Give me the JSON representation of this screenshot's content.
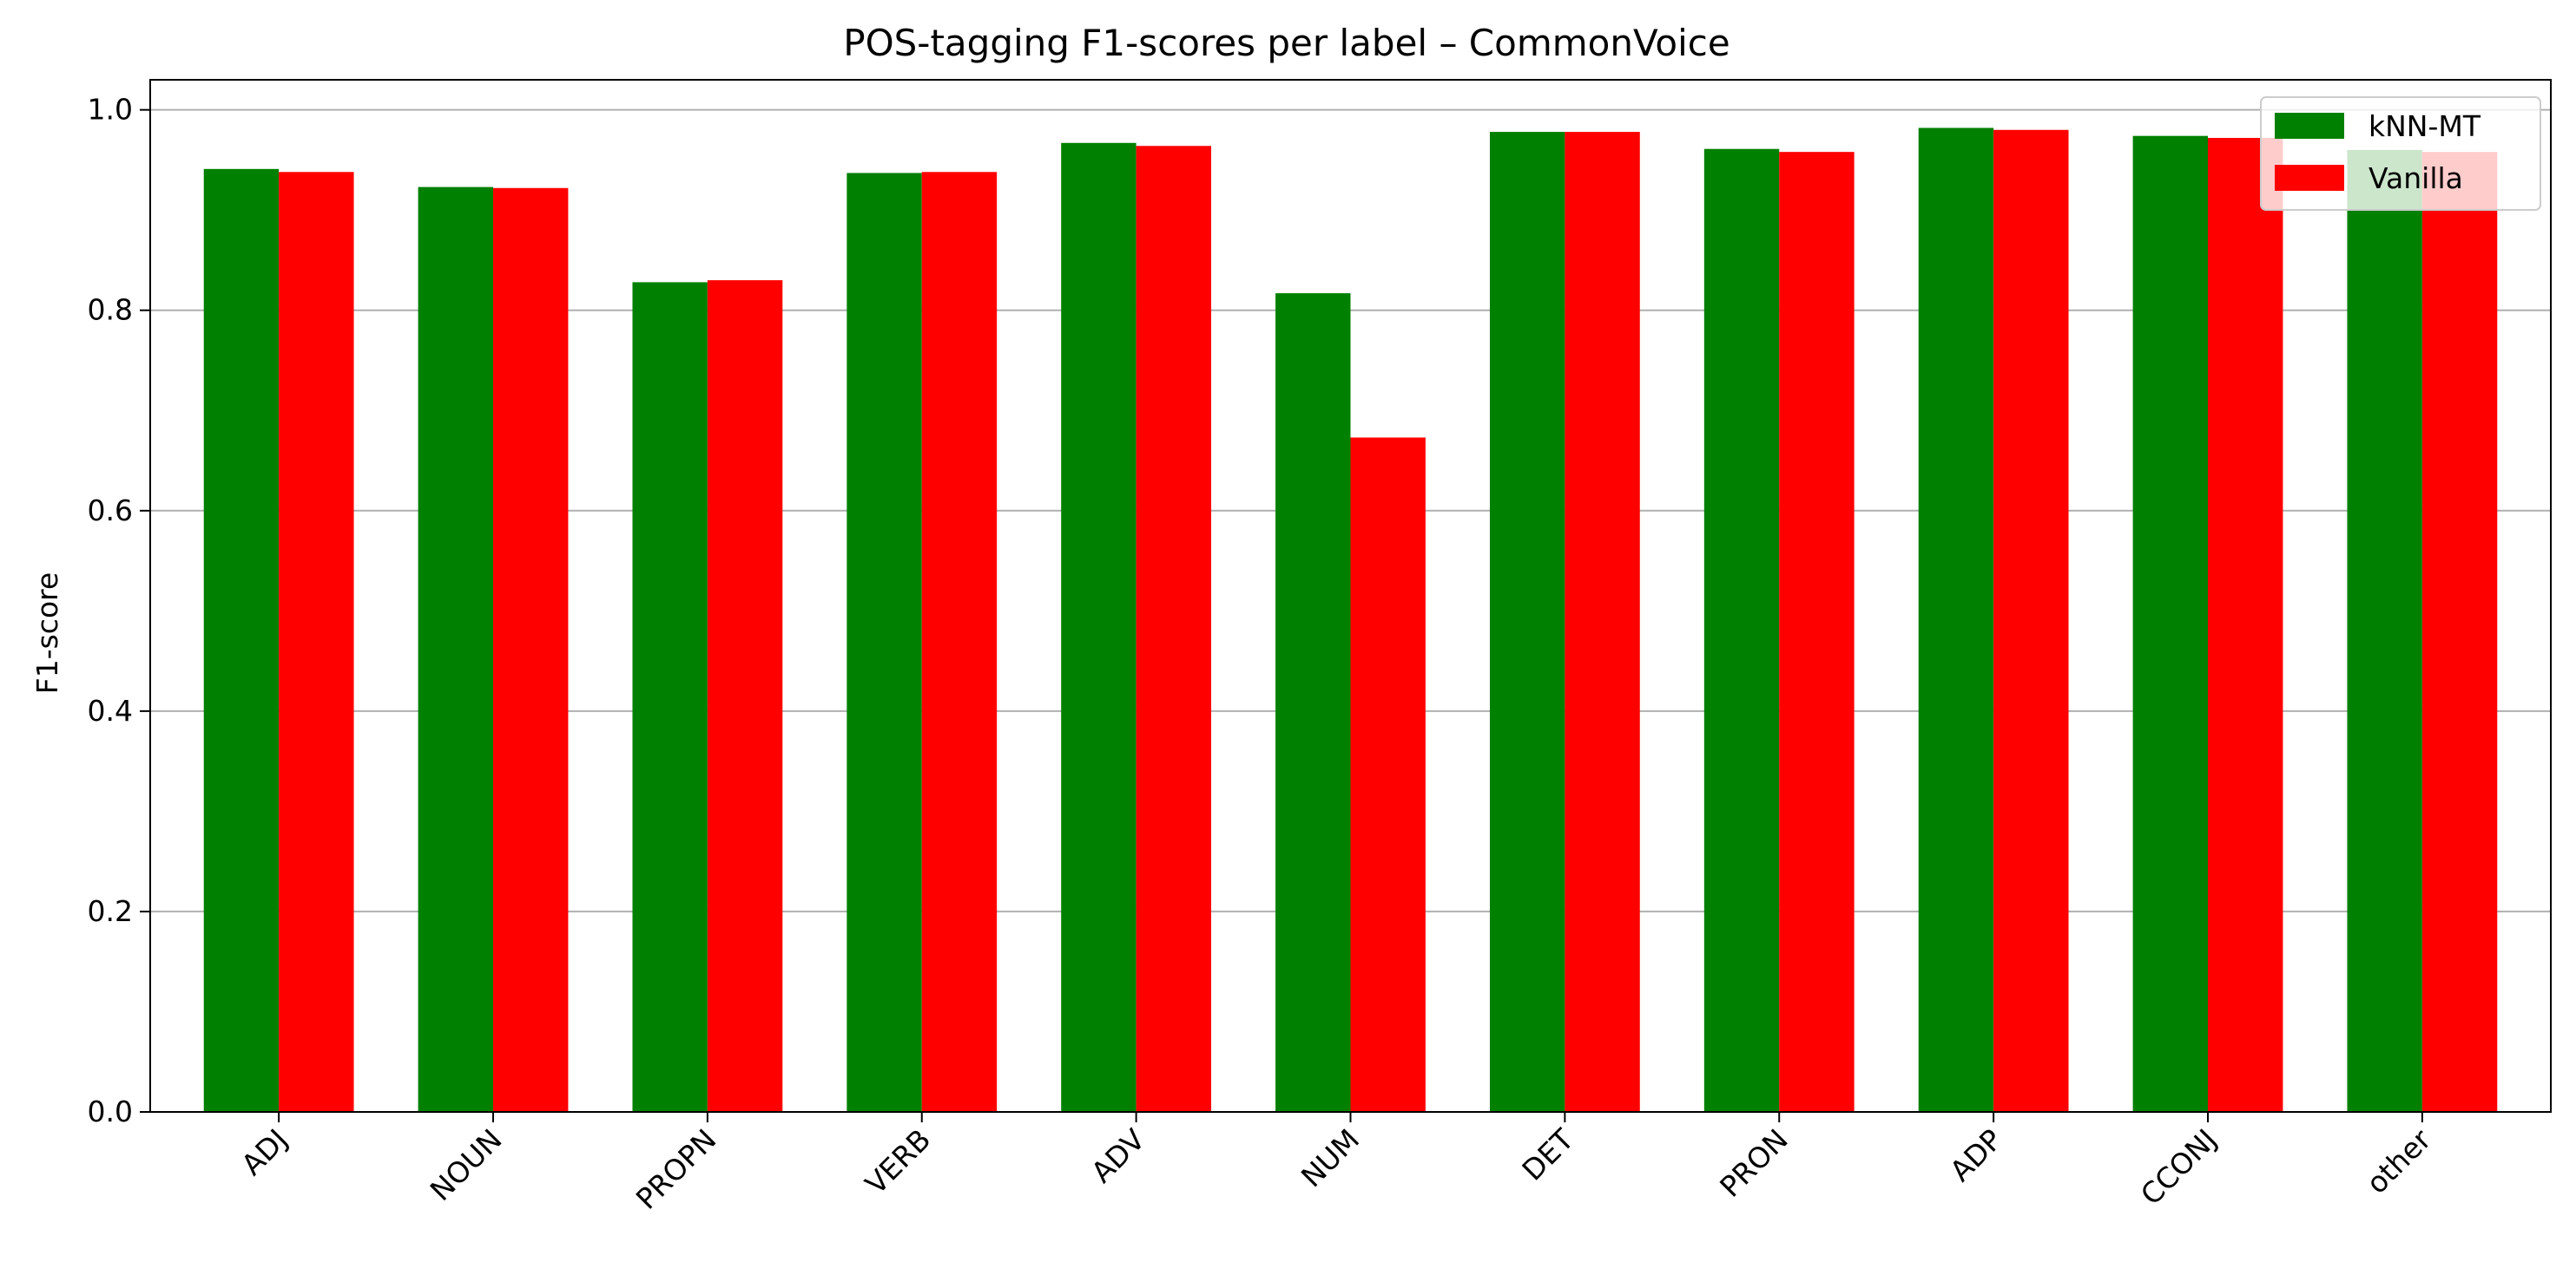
{
  "chart_data": {
    "type": "bar",
    "title": "POS-tagging F1-scores per label – CommonVoice",
    "xlabel": "",
    "ylabel": "F1-score",
    "ylim": [
      0,
      1.03
    ],
    "yticks": [
      "0.0",
      "0.2",
      "0.4",
      "0.6",
      "0.8",
      "1.0"
    ],
    "ytick_values": [
      0.0,
      0.2,
      0.4,
      0.6,
      0.8,
      1.0
    ],
    "grid": "y",
    "legend_position": "top-right",
    "categories": [
      "ADJ",
      "NOUN",
      "PROPN",
      "VERB",
      "ADV",
      "NUM",
      "DET",
      "PRON",
      "ADP",
      "CCONJ",
      "other"
    ],
    "series": [
      {
        "name": "kNN-MT",
        "color": "#008000",
        "values": [
          0.941,
          0.923,
          0.828,
          0.937,
          0.967,
          0.817,
          0.978,
          0.961,
          0.982,
          0.974,
          0.96
        ]
      },
      {
        "name": "Vanilla",
        "color": "#ff0000",
        "values": [
          0.938,
          0.922,
          0.83,
          0.938,
          0.964,
          0.673,
          0.978,
          0.958,
          0.98,
          0.972,
          0.958
        ]
      }
    ]
  }
}
